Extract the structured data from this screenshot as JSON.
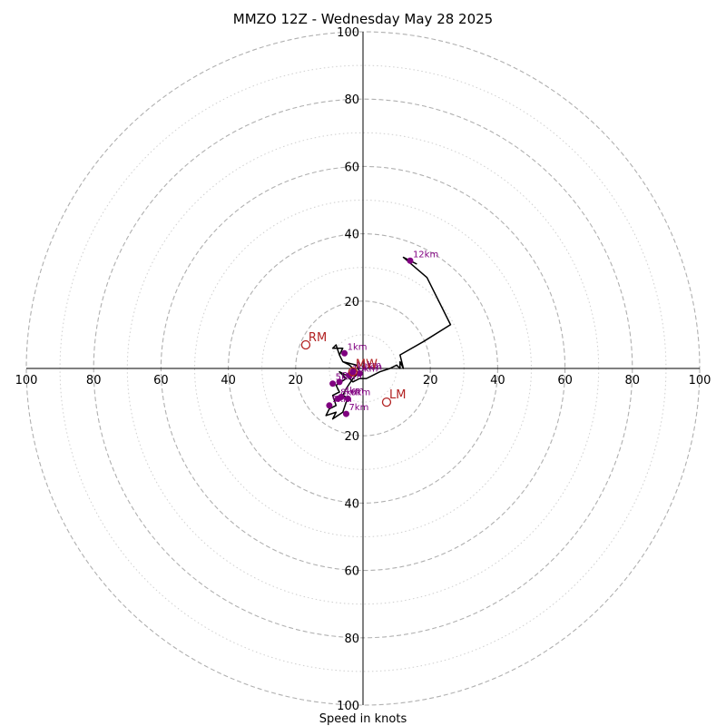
{
  "chart_data": {
    "type": "scatter",
    "subtype": "hodograph",
    "title": "MMZO 12Z - Wednesday May 28 2025",
    "xlabel": "Speed in knots",
    "range": 100,
    "ring_major": [
      20,
      40,
      60,
      80,
      100
    ],
    "ring_minor": [
      10,
      30,
      50,
      70,
      90
    ],
    "x_ticks": [
      {
        "value": -100,
        "label": "100"
      },
      {
        "value": -80,
        "label": "80"
      },
      {
        "value": -60,
        "label": "60"
      },
      {
        "value": -40,
        "label": "40"
      },
      {
        "value": -20,
        "label": "20"
      },
      {
        "value": 20,
        "label": "20"
      },
      {
        "value": 40,
        "label": "40"
      },
      {
        "value": 60,
        "label": "60"
      },
      {
        "value": 80,
        "label": "80"
      },
      {
        "value": 100,
        "label": "100"
      }
    ],
    "y_ticks": [
      {
        "value": 100,
        "label": "100"
      },
      {
        "value": 80,
        "label": "80"
      },
      {
        "value": 60,
        "label": "60"
      },
      {
        "value": 40,
        "label": "40"
      },
      {
        "value": 20,
        "label": "20"
      },
      {
        "value": -20,
        "label": "20"
      },
      {
        "value": -40,
        "label": "40"
      },
      {
        "value": -60,
        "label": "60"
      },
      {
        "value": -80,
        "label": "80"
      },
      {
        "value": -100,
        "label": "100"
      }
    ],
    "trace": {
      "color": "#000000",
      "points": [
        [
          8,
          0
        ],
        [
          10,
          1
        ],
        [
          11,
          0
        ],
        [
          11,
          2
        ],
        [
          12,
          0
        ],
        [
          11,
          4
        ],
        [
          18,
          8
        ],
        [
          26,
          13
        ],
        [
          19,
          27
        ],
        [
          12,
          33
        ],
        [
          14,
          32
        ],
        [
          16,
          31
        ]
      ],
      "lower_points": [
        [
          8,
          0
        ],
        [
          5,
          -1
        ],
        [
          3,
          -2
        ],
        [
          1,
          -3
        ],
        [
          -1,
          -3
        ],
        [
          -3,
          -4
        ],
        [
          -5,
          -2
        ],
        [
          -7,
          -1
        ],
        [
          -5,
          -3
        ],
        [
          -8,
          -5
        ],
        [
          -7,
          -7
        ],
        [
          -9,
          -8
        ],
        [
          -8,
          -11
        ],
        [
          -10,
          -12
        ],
        [
          -11,
          -14
        ],
        [
          -8,
          -13
        ],
        [
          -9,
          -15
        ],
        [
          -6,
          -13
        ],
        [
          -5,
          -10
        ],
        [
          -4,
          -9
        ],
        [
          -6,
          -8
        ],
        [
          -5,
          -6
        ],
        [
          -3,
          -3
        ],
        [
          -1,
          -1
        ],
        [
          -2,
          1
        ],
        [
          -6,
          2
        ],
        [
          -7,
          4
        ],
        [
          -6,
          6
        ],
        [
          -9,
          6
        ],
        [
          -8,
          7
        ],
        [
          -7,
          4
        ],
        [
          -6,
          2
        ],
        [
          -4,
          1
        ],
        [
          -2,
          -1
        ]
      ]
    },
    "km_markers": [
      {
        "label": "1km",
        "u": -5.5,
        "v": 4.5
      },
      {
        "label": "2km",
        "u": -1,
        "v": -1.5
      },
      {
        "label": "3km",
        "u": -7,
        "v": -4
      },
      {
        "label": "4km",
        "u": -6.5,
        "v": -8.5
      },
      {
        "label": "5km",
        "u": -9,
        "v": -4.5
      },
      {
        "label": "6km",
        "u": -4.5,
        "v": -9
      },
      {
        "label": "7km",
        "u": -5,
        "v": -13.5
      },
      {
        "label": "8km",
        "u": -7.5,
        "v": -9
      },
      {
        "label": "9km",
        "u": -10,
        "v": -11
      },
      {
        "label": "10km",
        "u": -4,
        "v": -2
      },
      {
        "label": "11km",
        "u": -3,
        "v": -1
      },
      {
        "label": "12km",
        "u": 14,
        "v": 32
      }
    ],
    "storm_motion": [
      {
        "label": "RM",
        "u": -17,
        "v": 7
      },
      {
        "label": "MW",
        "u": -3,
        "v": -1
      },
      {
        "label": "LM",
        "u": 7,
        "v": -10
      }
    ],
    "colors": {
      "major_ring": "#b0b0b0",
      "minor_ring": "#cfcfcf",
      "trace": "#000000",
      "km_marker": "#800080",
      "storm_motion": "#b22222"
    }
  }
}
